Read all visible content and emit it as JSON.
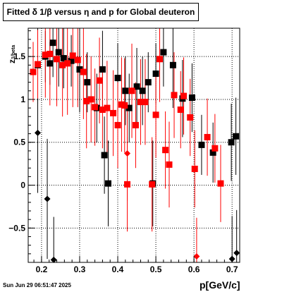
{
  "chart_data": {
    "type": "scatter",
    "title": "Fitted δ 1/β versus η and p for Global deuteron",
    "xlabel": "p[GeV/c]",
    "ylabel": "z",
    "ylabel_sub": "1/beta",
    "date": "Sun Jun 29 06:51:47 2025",
    "xlim": [
      0.165,
      0.72
    ],
    "ylim": [
      -0.9,
      1.83
    ],
    "x_ticks": [
      0.2,
      0.3,
      0.4,
      0.5,
      0.6,
      0.7
    ],
    "x_tick_labels": [
      "0.2",
      "0.3",
      "0.4",
      "0.5",
      "0.6",
      "0.7"
    ],
    "y_ticks": [
      -0.5,
      0,
      0.5,
      1,
      1.5
    ],
    "y_tick_labels": [
      "−0.5",
      "0",
      "0.5",
      "1",
      "1.5"
    ],
    "grid": true,
    "series": [
      {
        "color": "#000000",
        "marker": "square",
        "points": [
          {
            "x": 0.19,
            "y": 1.4,
            "err": 0.45
          },
          {
            "x": 0.21,
            "y": 1.5,
            "err": 0.3
          },
          {
            "x": 0.222,
            "y": 1.42,
            "err": 0.25
          },
          {
            "x": 0.23,
            "y": 1.66,
            "err": 0.4
          },
          {
            "x": 0.245,
            "y": 1.55,
            "err": 0.4
          },
          {
            "x": 0.258,
            "y": 1.48,
            "err": 0.35
          },
          {
            "x": 0.278,
            "y": 1.45,
            "err": 0.3
          },
          {
            "x": 0.3,
            "y": 1.35,
            "err": 0.5
          },
          {
            "x": 0.32,
            "y": 1.2,
            "err": 0.35
          },
          {
            "x": 0.345,
            "y": 0.9,
            "err": 0.4
          },
          {
            "x": 0.36,
            "y": 1.35,
            "err": 0.45
          },
          {
            "x": 0.365,
            "y": 0.35,
            "err": 0.45
          },
          {
            "x": 0.375,
            "y": 0.02,
            "err": 0.5
          },
          {
            "x": 0.4,
            "y": 1.25,
            "err": 0.4
          },
          {
            "x": 0.42,
            "y": 1.1,
            "err": 0.4
          },
          {
            "x": 0.43,
            "y": 0.9,
            "err": 0.4
          },
          {
            "x": 0.45,
            "y": 1.15,
            "err": 0.45
          },
          {
            "x": 0.465,
            "y": 1.1,
            "err": 0.4
          },
          {
            "x": 0.48,
            "y": 1.2,
            "err": 0.35
          },
          {
            "x": 0.492,
            "y": 0.02,
            "err": 0.5
          },
          {
            "x": 0.5,
            "y": 1.3,
            "err": 0.35
          },
          {
            "x": 0.52,
            "y": 1.55,
            "err": 0.4
          },
          {
            "x": 0.545,
            "y": 1.4,
            "err": 0.5
          },
          {
            "x": 0.57,
            "y": 1.01,
            "err": 0.45
          },
          {
            "x": 0.595,
            "y": 1.02,
            "err": 0.4
          },
          {
            "x": 0.62,
            "y": 0.47,
            "err": 0.35
          },
          {
            "x": 0.65,
            "y": 0.38,
            "err": 0.35
          },
          {
            "x": 0.698,
            "y": 0.5,
            "err": 0.45
          },
          {
            "x": 0.71,
            "y": 0.57,
            "err": 0.45
          }
        ],
        "diamonds": [
          {
            "x": 0.19,
            "y": 0.61,
            "err": 0.7
          },
          {
            "x": 0.215,
            "y": -0.16,
            "err": 0.7
          },
          {
            "x": 0.232,
            "y": -0.87,
            "err": 0.5
          },
          {
            "x": 0.7,
            "y": -0.86,
            "err": 0.5
          },
          {
            "x": 0.712,
            "y": -0.79,
            "err": 0.5
          }
        ]
      },
      {
        "color": "#ff0000",
        "marker": "square",
        "points": [
          {
            "x": 0.178,
            "y": 1.32,
            "err": 0.35
          },
          {
            "x": 0.19,
            "y": 1.41,
            "err": 0.4
          },
          {
            "x": 0.21,
            "y": 1.52,
            "err": 0.5
          },
          {
            "x": 0.222,
            "y": 1.53,
            "err": 0.6
          },
          {
            "x": 0.24,
            "y": 1.47,
            "err": 0.55
          },
          {
            "x": 0.255,
            "y": 1.4,
            "err": 0.6
          },
          {
            "x": 0.268,
            "y": 1.42,
            "err": 0.6
          },
          {
            "x": 0.282,
            "y": 1.51,
            "err": 0.6
          },
          {
            "x": 0.295,
            "y": 1.46,
            "err": 0.55
          },
          {
            "x": 0.31,
            "y": 1.32,
            "err": 0.55
          },
          {
            "x": 0.318,
            "y": 0.98,
            "err": 0.55
          },
          {
            "x": 0.33,
            "y": 1.0,
            "err": 0.5
          },
          {
            "x": 0.34,
            "y": 0.91,
            "err": 0.45
          },
          {
            "x": 0.352,
            "y": 1.22,
            "err": 0.5
          },
          {
            "x": 0.36,
            "y": 0.88,
            "err": 0.45
          },
          {
            "x": 0.372,
            "y": 0.9,
            "err": 0.55
          },
          {
            "x": 0.388,
            "y": 0.84,
            "err": 0.5
          },
          {
            "x": 0.4,
            "y": 0.7,
            "err": 0.5
          },
          {
            "x": 0.41,
            "y": 0.94,
            "err": 0.55
          },
          {
            "x": 0.418,
            "y": 0.93,
            "err": 0.55
          },
          {
            "x": 0.425,
            "y": 0.01,
            "err": 0.55
          },
          {
            "x": 0.437,
            "y": 1.1,
            "err": 0.55
          },
          {
            "x": 0.447,
            "y": 0.7,
            "err": 0.5
          },
          {
            "x": 0.46,
            "y": 0.97,
            "err": 0.5
          },
          {
            "x": 0.472,
            "y": 0.97,
            "err": 0.5
          },
          {
            "x": 0.49,
            "y": 0.01,
            "err": 0.55
          },
          {
            "x": 0.5,
            "y": 0.82,
            "err": 0.5
          },
          {
            "x": 0.51,
            "y": 1.47,
            "err": 0.5
          },
          {
            "x": 0.525,
            "y": 0.41,
            "err": 0.45
          },
          {
            "x": 0.535,
            "y": 0.24,
            "err": 0.5
          },
          {
            "x": 0.548,
            "y": 1.05,
            "err": 0.5
          },
          {
            "x": 0.565,
            "y": 0.88,
            "err": 0.45
          },
          {
            "x": 0.573,
            "y": 1.04,
            "err": 0.45
          },
          {
            "x": 0.59,
            "y": 0.79,
            "err": 0.45
          },
          {
            "x": 0.602,
            "y": 0.19,
            "err": 0.45
          },
          {
            "x": 0.635,
            "y": 0.56,
            "err": 0.45
          },
          {
            "x": 0.655,
            "y": 0.43,
            "err": 0.4
          },
          {
            "x": 0.67,
            "y": 0.02,
            "err": 0.45
          }
        ],
        "diamonds": [
          {
            "x": 0.425,
            "y": 0.37,
            "err": 0.55
          },
          {
            "x": 0.607,
            "y": -0.83,
            "err": 0.45
          }
        ]
      }
    ]
  }
}
